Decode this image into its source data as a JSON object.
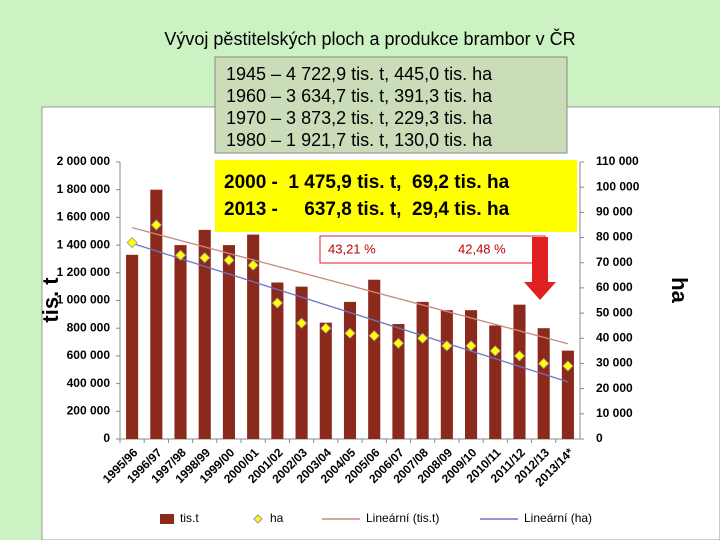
{
  "chart_data": {
    "type": "bar",
    "title": "Vývoj pěstitelských ploch a produkce brambor v ČR",
    "info_lines": [
      "1945 – 4 722,9 tis. t, 445,0 tis. ha",
      "1960 – 3 634,7 tis. t, 391,3 tis. ha",
      "1970 – 3 873,2 tis. t, 229,3 tis. ha",
      "1980 – 1 921,7 tis. t, 130,0 tis. ha"
    ],
    "highlight_lines": [
      "2000 -  1 475,9 tis. t,  69,2 tis. ha",
      "2013 -     637,8 tis. t,  29,4 tis. ha"
    ],
    "percent_labels": [
      "43,21 %",
      "42,48 %"
    ],
    "ylabel": "tis. t",
    "y2label": "ha",
    "categories": [
      "1995/96",
      "1996/97",
      "1997/98",
      "1998/99",
      "1999/00",
      "2000/01",
      "2001/02",
      "2002/03",
      "2003/04",
      "2004/05",
      "2005/06",
      "2006/07",
      "2007/08",
      "2008/09",
      "2009/10",
      "2010/11",
      "2011/12",
      "2012/13",
      "2013/14*"
    ],
    "series": [
      {
        "name": "tis.t",
        "color": "#8b2a1c",
        "values": [
          1330000,
          1800000,
          1400000,
          1510000,
          1400000,
          1476000,
          1130000,
          1100000,
          840000,
          990000,
          1150000,
          830000,
          990000,
          930000,
          930000,
          820000,
          970000,
          800000,
          638000
        ]
      },
      {
        "name": "ha",
        "color": "#ffff00",
        "axis": "y2",
        "values": [
          78000,
          85000,
          73000,
          72000,
          71000,
          69000,
          54000,
          46000,
          44000,
          42000,
          41000,
          38000,
          40000,
          37000,
          37000,
          35000,
          33000,
          30000,
          29000
        ]
      }
    ],
    "trendlines": [
      {
        "name": "Lineární (tis.t)",
        "color": "#c88a80",
        "series": 0
      },
      {
        "name": "Lineární (ha)",
        "color": "#6a74c4",
        "series": 1
      }
    ],
    "ylim": [
      0,
      2000000
    ],
    "yticks": [
      0,
      {
        "value": 200000,
        "label": "200 000"
      },
      {
        "value": 400000,
        "label": "400 000"
      },
      {
        "value": 600000,
        "label": "600 000"
      },
      {
        "value": 800000,
        "label": "800 000"
      },
      {
        "value": 1000000,
        "label": "1 000 000"
      },
      {
        "value": 1200000,
        "label": "1 200 000"
      },
      {
        "value": 1400000,
        "label": "1 400 000"
      },
      {
        "value": 1600000,
        "label": "1 600 000"
      },
      {
        "value": 1800000,
        "label": "1 800 000"
      },
      {
        "value": 2000000,
        "label": "2 000 000"
      }
    ],
    "y2lim": [
      0,
      110000
    ],
    "y2ticks": [
      0,
      {
        "value": 10000,
        "label": "10 000"
      },
      {
        "value": 20000,
        "label": "20 000"
      },
      {
        "value": 30000,
        "label": "30 000"
      },
      {
        "value": 40000,
        "label": "40 000"
      },
      {
        "value": 50000,
        "label": "50 000"
      },
      {
        "value": 60000,
        "label": "60 000"
      },
      {
        "value": 70000,
        "label": "70 000"
      },
      {
        "value": 80000,
        "label": "80 000"
      },
      {
        "value": 90000,
        "label": "90 000"
      },
      {
        "value": 100000,
        "label": "100 000"
      },
      {
        "value": 110000,
        "label": "110 000"
      }
    ],
    "grid": false
  }
}
